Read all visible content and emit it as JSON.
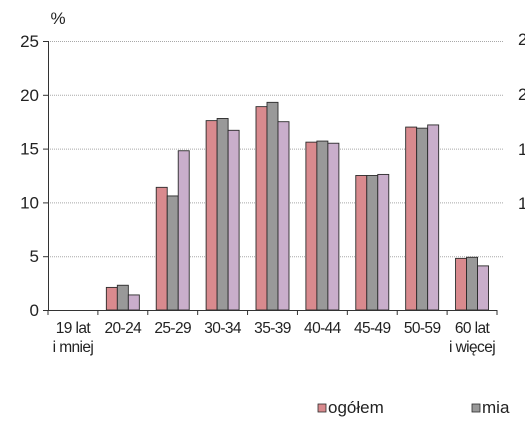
{
  "chart_data": {
    "type": "bar",
    "ylabel": "%",
    "ylim": [
      0,
      25
    ],
    "yticks": [
      0,
      5,
      10,
      15,
      20,
      25
    ],
    "grid": true,
    "legend_position": "bottom",
    "categories": [
      [
        "19 lat",
        "i mniej"
      ],
      [
        "20-24"
      ],
      [
        "25-29"
      ],
      [
        "30-34"
      ],
      [
        "35-39"
      ],
      [
        "40-44"
      ],
      [
        "45-49"
      ],
      [
        "50-59"
      ],
      [
        "60 lat",
        "i więcej"
      ]
    ],
    "series": [
      {
        "name": "ogółem",
        "color": "#D98A8E",
        "values": [
          0,
          2.1,
          11.4,
          17.6,
          18.9,
          15.6,
          12.5,
          17.0,
          4.8
        ]
      },
      {
        "name": "mia",
        "color": "#999999",
        "values": [
          0,
          2.3,
          10.6,
          17.8,
          19.3,
          15.7,
          12.5,
          16.9,
          4.9
        ]
      },
      {
        "name": "",
        "color": "#C9AECB",
        "values": [
          0,
          1.4,
          14.8,
          16.7,
          17.5,
          15.5,
          12.6,
          17.2,
          4.1
        ]
      }
    ],
    "right_axis_partial_labels": [
      "2",
      "2",
      "1",
      "1"
    ]
  }
}
